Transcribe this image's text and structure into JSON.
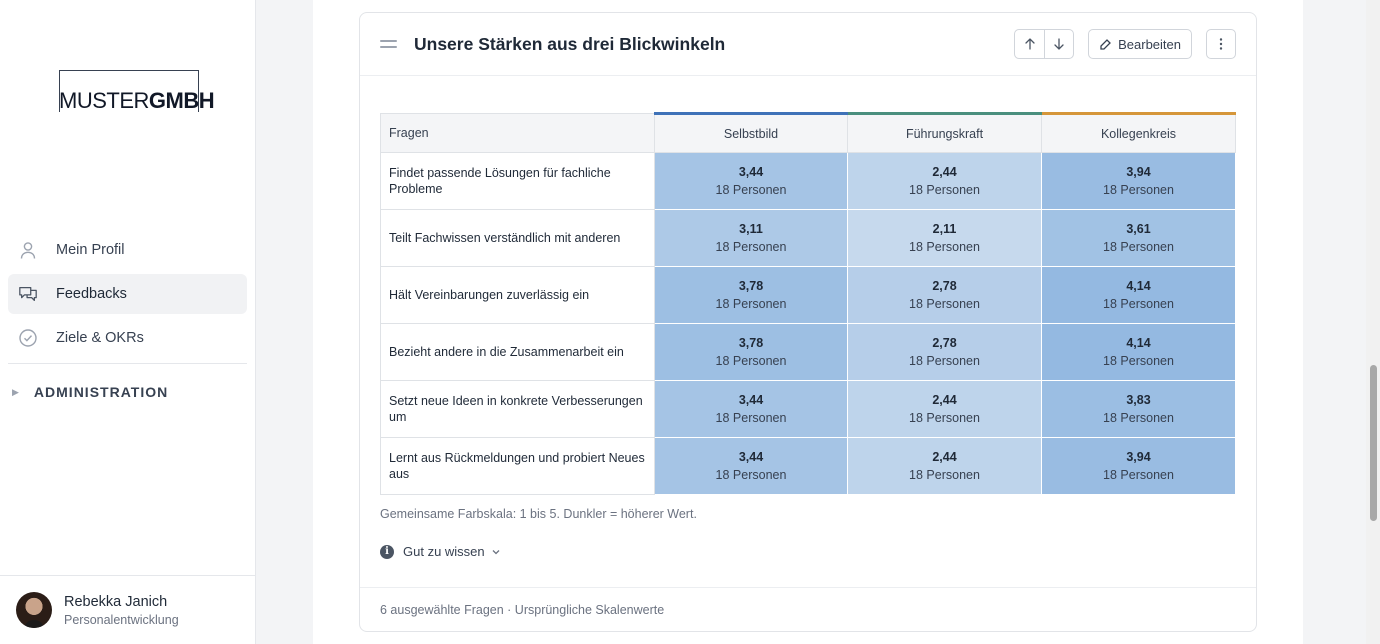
{
  "sidebar": {
    "logo": {
      "part1": "MUSTER",
      "part2": "GMBH"
    },
    "items": [
      {
        "label": "Mein Profil",
        "icon": "user-icon",
        "active": false
      },
      {
        "label": "Feedbacks",
        "icon": "chat-icon",
        "active": true
      },
      {
        "label": "Ziele & OKRs",
        "icon": "check-circle-icon",
        "active": false
      }
    ],
    "admin_label": "ADMINISTRATION",
    "user": {
      "name": "Rebekka Janich",
      "role": "Personalentwicklung"
    }
  },
  "card": {
    "title": "Unsere Stärken aus drei Blickwinkeln",
    "edit_label": "Bearbeiten",
    "table": {
      "headers": [
        "Fragen",
        "Selbstbild",
        "Führungskraft",
        "Kollegenkreis"
      ],
      "header_colors": [
        "#3f72b8",
        "#4a8f7e",
        "#d5963a"
      ],
      "rows": [
        {
          "question": "Findet passende Lösungen für fachliche Probleme",
          "values": [
            {
              "score": "3,44",
              "count": "18 Personen"
            },
            {
              "score": "2,44",
              "count": "18 Personen"
            },
            {
              "score": "3,94",
              "count": "18 Personen"
            }
          ]
        },
        {
          "question": "Teilt Fachwissen verständlich mit anderen",
          "values": [
            {
              "score": "3,11",
              "count": "18 Personen"
            },
            {
              "score": "2,11",
              "count": "18 Personen"
            },
            {
              "score": "3,61",
              "count": "18 Personen"
            }
          ]
        },
        {
          "question": "Hält Vereinbarungen zuverlässig ein",
          "values": [
            {
              "score": "3,78",
              "count": "18 Personen"
            },
            {
              "score": "2,78",
              "count": "18 Personen"
            },
            {
              "score": "4,14",
              "count": "18 Personen"
            }
          ]
        },
        {
          "question": "Bezieht andere in die Zusammenarbeit ein",
          "values": [
            {
              "score": "3,78",
              "count": "18 Personen"
            },
            {
              "score": "2,78",
              "count": "18 Personen"
            },
            {
              "score": "4,14",
              "count": "18 Personen"
            }
          ]
        },
        {
          "question": "Setzt neue Ideen in konkrete Verbesserungen um",
          "values": [
            {
              "score": "3,44",
              "count": "18 Personen"
            },
            {
              "score": "2,44",
              "count": "18 Personen"
            },
            {
              "score": "3,83",
              "count": "18 Personen"
            }
          ]
        },
        {
          "question": "Lernt aus Rückmeldungen und probiert Neues aus",
          "values": [
            {
              "score": "3,44",
              "count": "18 Personen"
            },
            {
              "score": "2,44",
              "count": "18 Personen"
            },
            {
              "score": "3,94",
              "count": "18 Personen"
            }
          ]
        }
      ]
    },
    "scale_note": "Gemeinsame Farbskala: 1 bis 5. Dunkler = höherer Wert.",
    "good_to_know": "Gut zu wissen",
    "footer": "6 ausgewählte Fragen · Ursprüngliche Skalenwerte"
  }
}
